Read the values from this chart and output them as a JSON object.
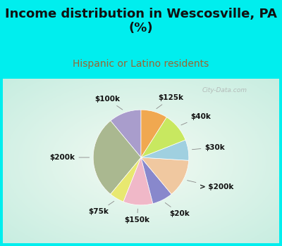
{
  "title": "Income distribution in Wescosville, PA\n(%)",
  "subtitle": "Hispanic or Latino residents",
  "bg_color": "#00EEEE",
  "chart_bg_color": "#e8f5f0",
  "slices": [
    {
      "label": "$100k",
      "value": 11,
      "color": "#a99dcc"
    },
    {
      "label": "$200k",
      "value": 28,
      "color": "#aab890"
    },
    {
      "label": "$75k",
      "value": 5,
      "color": "#e8e870"
    },
    {
      "label": "$150k",
      "value": 10,
      "color": "#f0b8c8"
    },
    {
      "label": "$20k",
      "value": 7,
      "color": "#8888cc"
    },
    {
      "label": "> $200k",
      "value": 13,
      "color": "#f0c8a0"
    },
    {
      "label": "$30k",
      "value": 7,
      "color": "#a0d0e0"
    },
    {
      "label": "$40k",
      "value": 10,
      "color": "#c8e860"
    },
    {
      "label": "$125k",
      "value": 9,
      "color": "#f0a850"
    }
  ],
  "title_fontsize": 13,
  "subtitle_fontsize": 10,
  "label_fontsize": 7.5,
  "subtitle_color": "#996633",
  "watermark": "City-Data.com",
  "start_angle": 90
}
